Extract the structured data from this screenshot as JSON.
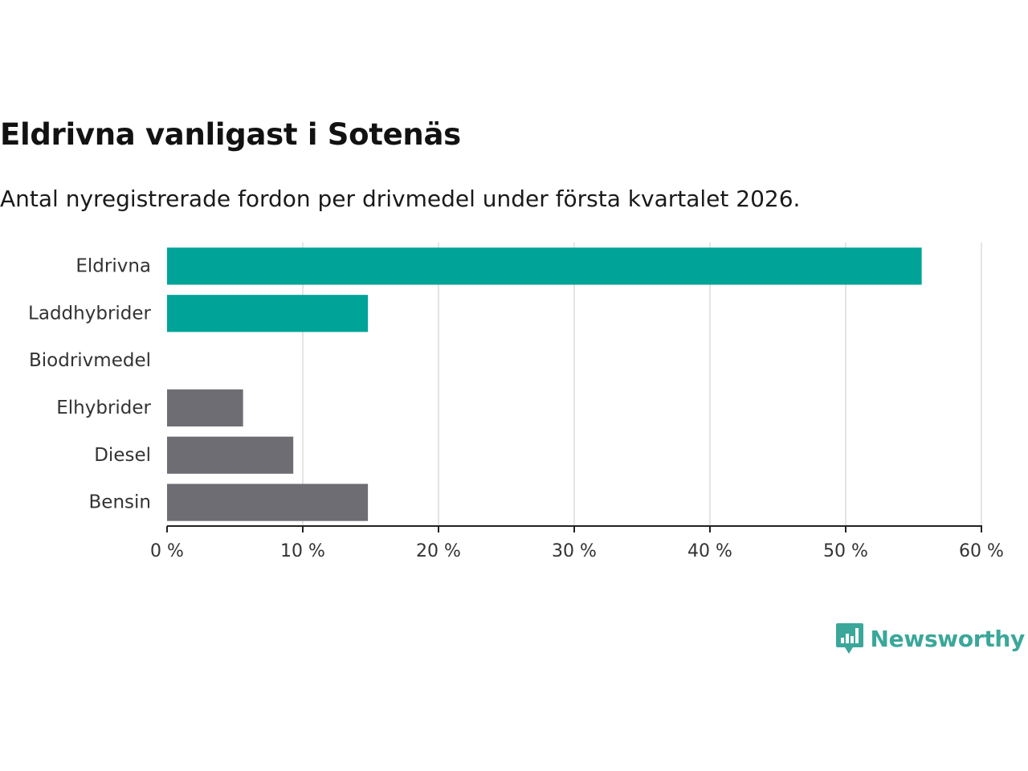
{
  "chart_data": {
    "type": "bar",
    "orientation": "horizontal",
    "title": "Eldrivna vanligast i Sotenäs",
    "subtitle": "Antal nyregistrerade fordon per drivmedel under första kvartalet 2026.",
    "categories": [
      "Eldrivna",
      "Laddhybrider",
      "Biodrivmedel",
      "Elhybrider",
      "Diesel",
      "Bensin"
    ],
    "values": [
      55.6,
      14.8,
      0,
      5.6,
      9.3,
      14.8
    ],
    "bar_colors": [
      "#00a398",
      "#00a398",
      "#00a398",
      "#6e6d74",
      "#6e6d74",
      "#6e6d74"
    ],
    "xlim": [
      0,
      60
    ],
    "xticks": [
      0,
      10,
      20,
      30,
      40,
      50,
      60
    ],
    "xtick_labels": [
      "0 %",
      "10 %",
      "20 %",
      "30 %",
      "40 %",
      "50 %",
      "60 %"
    ],
    "xlabel": "",
    "ylabel": "",
    "grid": true
  },
  "brand": {
    "name": "Newsworthy",
    "color": "#3aa79a"
  }
}
